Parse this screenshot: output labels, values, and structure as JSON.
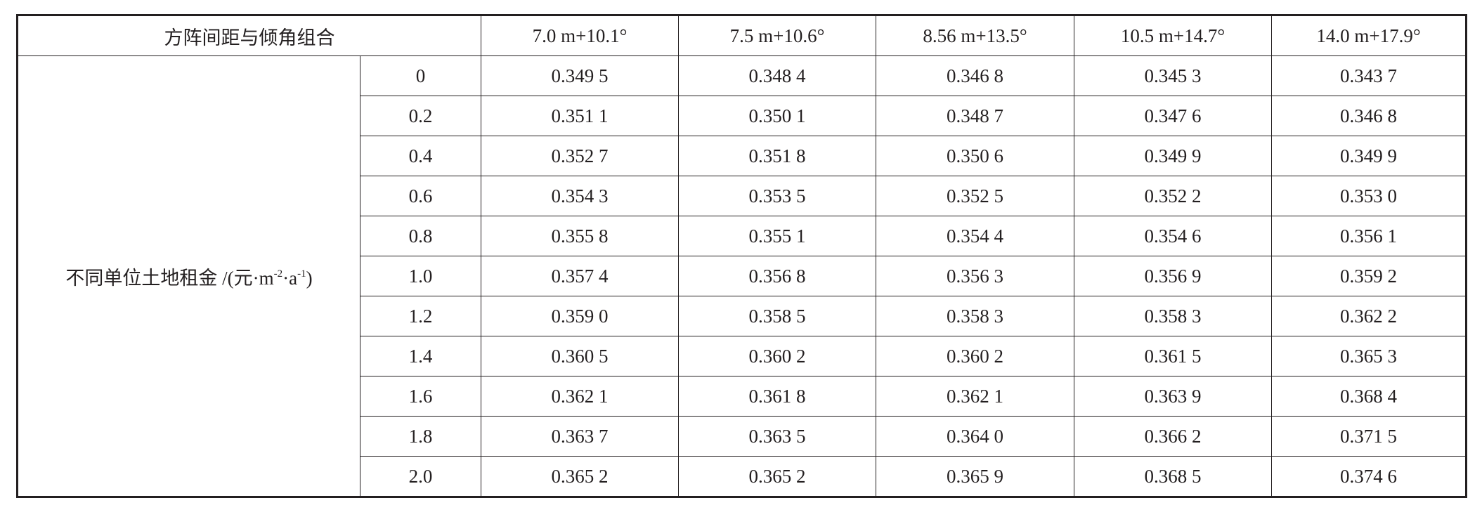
{
  "table": {
    "header": {
      "corner": "方阵间距与倾角组合",
      "columns": [
        "7.0 m+10.1°",
        "7.5 m+10.6°",
        "8.56 m+13.5°",
        "10.5 m+14.7°",
        "14.0 m+17.9°"
      ]
    },
    "group_label": [
      "不同单位土地租金 /(元·m",
      "-2",
      "·a",
      "-1",
      ")"
    ],
    "rows": [
      {
        "label": "0",
        "values": [
          "0.349 5",
          "0.348 4",
          "0.346 8",
          "0.345 3",
          "0.343 7"
        ]
      },
      {
        "label": "0.2",
        "values": [
          "0.351 1",
          "0.350 1",
          "0.348 7",
          "0.347 6",
          "0.346 8"
        ]
      },
      {
        "label": "0.4",
        "values": [
          "0.352 7",
          "0.351 8",
          "0.350 6",
          "0.349 9",
          "0.349 9"
        ]
      },
      {
        "label": "0.6",
        "values": [
          "0.354 3",
          "0.353 5",
          "0.352 5",
          "0.352 2",
          "0.353 0"
        ]
      },
      {
        "label": "0.8",
        "values": [
          "0.355 8",
          "0.355 1",
          "0.354 4",
          "0.354 6",
          "0.356 1"
        ]
      },
      {
        "label": "1.0",
        "values": [
          "0.357 4",
          "0.356 8",
          "0.356 3",
          "0.356 9",
          "0.359 2"
        ]
      },
      {
        "label": "1.2",
        "values": [
          "0.359 0",
          "0.358 5",
          "0.358 3",
          "0.358 3",
          "0.362 2"
        ]
      },
      {
        "label": "1.4",
        "values": [
          "0.360 5",
          "0.360 2",
          "0.360 2",
          "0.361 5",
          "0.365 3"
        ]
      },
      {
        "label": "1.6",
        "values": [
          "0.362 1",
          "0.361 8",
          "0.362 1",
          "0.363 9",
          "0.368 4"
        ]
      },
      {
        "label": "1.8",
        "values": [
          "0.363 7",
          "0.363 5",
          "0.364 0",
          "0.366 2",
          "0.371 5"
        ]
      },
      {
        "label": "2.0",
        "values": [
          "0.365 2",
          "0.365 2",
          "0.365 9",
          "0.368 5",
          "0.374 6"
        ]
      }
    ]
  }
}
